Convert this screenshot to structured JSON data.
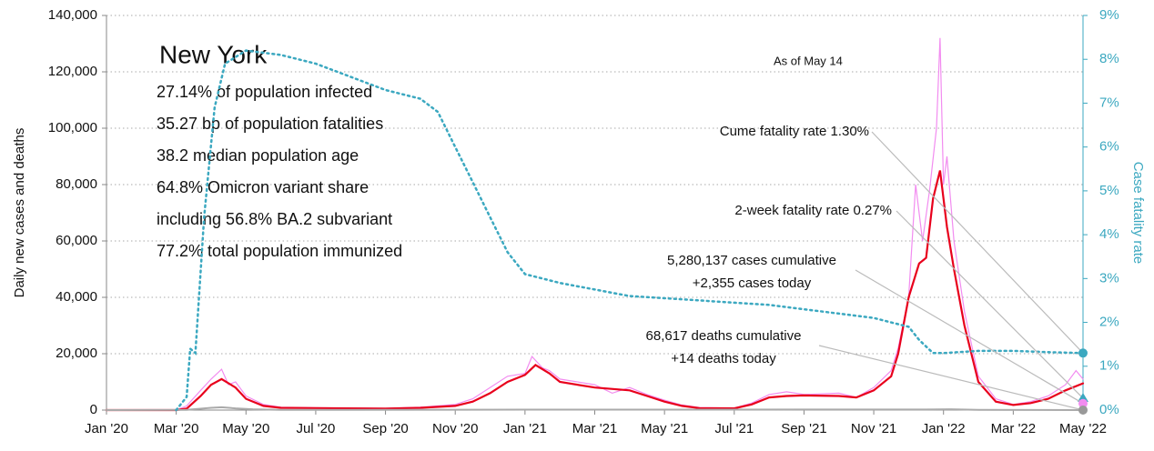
{
  "chart_data": {
    "type": "line",
    "title": "New York",
    "info_lines": [
      "27.14% of population infected",
      "35.27 bp of population fatalities",
      "38.2 median population age",
      "64.8% Omicron variant share",
      "including 56.8% BA.2 subvariant",
      "77.2% total population immunized"
    ],
    "as_of": "As of May 14",
    "y_label": "Daily new cases and deaths",
    "y2_label": "Case fatality rate",
    "xlim": [
      0,
      28
    ],
    "xticks": [
      {
        "value": 0,
        "label": "Jan '20"
      },
      {
        "value": 2,
        "label": "Mar '20"
      },
      {
        "value": 4,
        "label": "May '20"
      },
      {
        "value": 6,
        "label": "Jul '20"
      },
      {
        "value": 8,
        "label": "Sep '20"
      },
      {
        "value": 10,
        "label": "Nov '20"
      },
      {
        "value": 12,
        "label": "Jan '21"
      },
      {
        "value": 14,
        "label": "Mar '21"
      },
      {
        "value": 16,
        "label": "May '21"
      },
      {
        "value": 18,
        "label": "Jul '21"
      },
      {
        "value": 20,
        "label": "Sep '21"
      },
      {
        "value": 22,
        "label": "Nov '21"
      },
      {
        "value": 24,
        "label": "Jan '22"
      },
      {
        "value": 26,
        "label": "Mar '22"
      },
      {
        "value": 28,
        "label": "May '22"
      }
    ],
    "ylim": [
      0,
      140000
    ],
    "yticks": [
      0,
      {
        "value": 20000,
        "label": "20,000"
      },
      {
        "value": 40000,
        "label": "40,000"
      },
      {
        "value": 60000,
        "label": "60,000"
      },
      {
        "value": 80000,
        "label": "80,000"
      },
      {
        "value": 100000,
        "label": "100,000"
      },
      {
        "value": 120000,
        "label": "120,000"
      },
      {
        "value": 140000,
        "label": "140,000"
      }
    ],
    "y2lim": [
      0,
      9
    ],
    "y2ticks": [
      {
        "value": 0,
        "label": "0%"
      },
      {
        "value": 1,
        "label": "1%"
      },
      {
        "value": 2,
        "label": "2%"
      },
      {
        "value": 3,
        "label": "3%"
      },
      {
        "value": 4,
        "label": "4%"
      },
      {
        "value": 5,
        "label": "5%"
      },
      {
        "value": 6,
        "label": "6%"
      },
      {
        "value": 7,
        "label": "7%"
      },
      {
        "value": 8,
        "label": "8%"
      },
      {
        "value": 9,
        "label": "9%"
      }
    ],
    "grid": true,
    "series": [
      {
        "color": "#f28cf0",
        "width": 1.2,
        "axis": "y",
        "x": [
          0,
          2,
          2.3,
          2.7,
          3.0,
          3.3,
          3.5,
          3.7,
          4.0,
          4.5,
          5,
          6,
          8,
          9,
          10,
          10.5,
          11,
          11.5,
          12,
          12.2,
          12.5,
          12.7,
          13,
          14,
          14.5,
          15,
          15.5,
          16,
          16.5,
          17,
          18,
          18.5,
          19,
          19.5,
          20,
          21,
          21.5,
          22,
          22.5,
          22.7,
          23.0,
          23.2,
          23.4,
          23.6,
          23.8,
          23.9,
          24.0,
          24.1,
          24.3,
          24.6,
          25,
          25.5,
          26,
          26.5,
          27,
          27.5,
          27.8,
          28
        ],
        "values": [
          0,
          0,
          1500,
          7000,
          11000,
          14500,
          9000,
          10000,
          5000,
          2000,
          1000,
          800,
          600,
          1000,
          2000,
          4000,
          8000,
          12000,
          13000,
          19000,
          15000,
          14000,
          11000,
          9000,
          6000,
          8000,
          5500,
          3500,
          1800,
          900,
          700,
          2500,
          5500,
          6500,
          5500,
          6000,
          4500,
          8000,
          14000,
          22000,
          40000,
          80000,
          60000,
          78000,
          100000,
          132000,
          80000,
          90000,
          60000,
          35000,
          12000,
          4000,
          2000,
          3000,
          5000,
          9000,
          14000,
          11000
        ]
      },
      {
        "color": "#e8001c",
        "width": 2.2,
        "axis": "y",
        "x": [
          0,
          2,
          2.3,
          2.7,
          3.0,
          3.3,
          3.7,
          4.0,
          4.5,
          5,
          6,
          8,
          9,
          10,
          10.5,
          11,
          11.5,
          12,
          12.3,
          12.7,
          13,
          14,
          15,
          15.5,
          16,
          16.5,
          17,
          18,
          18.5,
          19,
          19.5,
          20,
          21,
          21.5,
          22,
          22.5,
          22.7,
          23.0,
          23.3,
          23.5,
          23.7,
          23.9,
          24.1,
          24.3,
          24.6,
          25,
          25.5,
          26,
          26.5,
          27,
          27.5,
          28
        ],
        "values": [
          0,
          0,
          500,
          5000,
          9000,
          11000,
          8000,
          4000,
          1500,
          800,
          700,
          500,
          800,
          1500,
          3000,
          6000,
          10000,
          12500,
          16000,
          13000,
          10000,
          8000,
          7000,
          5000,
          3000,
          1500,
          700,
          600,
          2000,
          4500,
          5000,
          5200,
          5000,
          4500,
          7000,
          12000,
          20000,
          40000,
          52000,
          54000,
          75000,
          85000,
          65000,
          50000,
          30000,
          10000,
          3000,
          1800,
          2500,
          4000,
          7000,
          9500
        ]
      },
      {
        "color": "#aaaaaa",
        "width": 2,
        "axis": "y",
        "x": [
          0,
          2.3,
          3.0,
          3.3,
          3.7,
          4.2,
          5,
          12,
          13,
          23.5,
          24.2,
          25,
          28
        ],
        "values": [
          0,
          100,
          800,
          1000,
          600,
          300,
          50,
          150,
          150,
          200,
          300,
          100,
          14
        ]
      },
      {
        "color": "#3ba8c0",
        "width": 2.5,
        "axis": "y2",
        "dotted": true,
        "x": [
          2.0,
          2.3,
          2.4,
          2.55,
          2.8,
          3.1,
          3.4,
          4.0,
          5,
          6,
          7,
          8,
          9,
          9.5,
          10,
          10.5,
          11,
          11.5,
          12,
          12.5,
          13,
          14,
          15,
          16,
          17,
          18,
          19,
          20,
          21,
          22,
          22.5,
          23,
          23.3,
          23.7,
          24,
          25,
          26,
          27,
          28
        ],
        "values": [
          0,
          0.3,
          1.4,
          1.3,
          4.4,
          6.9,
          7.9,
          8.2,
          8.1,
          7.9,
          7.6,
          7.3,
          7.1,
          6.8,
          6.0,
          5.2,
          4.4,
          3.6,
          3.1,
          3.0,
          2.9,
          2.75,
          2.6,
          2.55,
          2.5,
          2.45,
          2.4,
          2.3,
          2.2,
          2.1,
          2.0,
          1.9,
          1.6,
          1.3,
          1.3,
          1.35,
          1.35,
          1.32,
          1.3
        ]
      }
    ],
    "annotations": [
      {
        "text": [
          "Cume fatality rate 1.30%"
        ],
        "value": 1.3,
        "axis": "y2",
        "color": "#3ba8c0",
        "shape": "circle"
      },
      {
        "text": [
          "2-week fatality rate 0.27%"
        ],
        "value": 0.27,
        "axis": "y2",
        "color": "#3ba8c0",
        "shape": "triangle"
      },
      {
        "text": [
          "5,280,137 cases cumulative",
          "+2,355 cases today"
        ],
        "value": 2355,
        "axis": "y",
        "color": "#f28cf0",
        "shape": "circle"
      },
      {
        "text": [
          "68,617 deaths cumulative",
          "+14 deaths today"
        ],
        "value": 14,
        "axis": "y",
        "color": "#999999",
        "shape": "circle"
      }
    ]
  }
}
